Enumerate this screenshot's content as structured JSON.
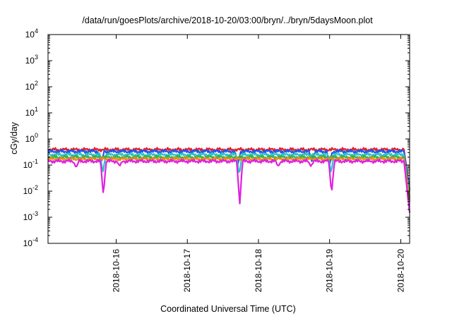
{
  "chart_data": {
    "type": "line",
    "title": "/data/run/goesPlots/archive/2018-10-20/03:00/bryn/../bryn/5daysMoon.plot",
    "xlabel": "Coordinated Universal Time (UTC)",
    "ylabel": "cGy/day",
    "y_scale": "log",
    "ylim": [
      0.0001,
      10000
    ],
    "xlim": [
      "2018-10-15 01:00",
      "2018-10-20 03:00"
    ],
    "y_ticks": [
      {
        "base": "10",
        "exp": "-4",
        "value": 0.0001
      },
      {
        "base": "10",
        "exp": "-3",
        "value": 0.001
      },
      {
        "base": "10",
        "exp": "-2",
        "value": 0.01
      },
      {
        "base": "10",
        "exp": "-1",
        "value": 0.1
      },
      {
        "base": "10",
        "exp": "0",
        "value": 1
      },
      {
        "base": "10",
        "exp": "1",
        "value": 10
      },
      {
        "base": "10",
        "exp": "2",
        "value": 100
      },
      {
        "base": "10",
        "exp": "3",
        "value": 1000
      },
      {
        "base": "10",
        "exp": "4",
        "value": 10000
      }
    ],
    "x_ticks": [
      "2018-10-16",
      "2018-10-17",
      "2018-10-18",
      "2018-10-19",
      "2018-10-20"
    ],
    "grid": false,
    "legend": "none",
    "series": [
      {
        "color": "#e0202a",
        "baseline": 0.39,
        "x": [
          "2018-10-15 01:00",
          "2018-10-15 12:00",
          "2018-10-15 20:00",
          "2018-10-16 06:00",
          "2018-10-16 12:00",
          "2018-10-17 00:00",
          "2018-10-17 18:00",
          "2018-10-18 06:00",
          "2018-10-18 18:00",
          "2018-10-19 01:00",
          "2018-10-19 12:00",
          "2018-10-20 00:00",
          "2018-10-20 01:30",
          "2018-10-20 03:00"
        ],
        "y": [
          0.35,
          0.4,
          0.38,
          0.4,
          0.39,
          0.4,
          0.39,
          0.4,
          0.39,
          0.4,
          0.4,
          0.42,
          0.4,
          0.012
        ]
      },
      {
        "color": "#2255ee",
        "baseline": 0.33,
        "x": [
          "2018-10-15 01:00",
          "2018-10-15 11:00",
          "2018-10-15 19:00",
          "2018-10-16 06:00",
          "2018-10-17 00:00",
          "2018-10-17 17:00",
          "2018-10-18 06:00",
          "2018-10-18 18:00",
          "2018-10-19 00:00",
          "2018-10-19 12:00",
          "2018-10-20 00:00",
          "2018-10-20 03:00"
        ],
        "y": [
          0.3,
          0.34,
          0.12,
          0.33,
          0.33,
          0.1,
          0.33,
          0.14,
          0.1,
          0.33,
          0.34,
          0.01
        ]
      },
      {
        "color": "#2bc3c9",
        "baseline": 0.25,
        "x": [
          "2018-10-15 01:00",
          "2018-10-15 19:30",
          "2018-10-16 12:00",
          "2018-10-17 17:30",
          "2018-10-18 12:00",
          "2018-10-19 00:30",
          "2018-10-19 12:00",
          "2018-10-20 03:00"
        ],
        "y": [
          0.24,
          0.05,
          0.25,
          0.04,
          0.25,
          0.05,
          0.25,
          0.006
        ]
      },
      {
        "color": "#3cb043",
        "baseline": 0.2,
        "x": [
          "2018-10-15 01:00",
          "2018-10-16 12:00",
          "2018-10-18 12:00",
          "2018-10-20 03:00"
        ],
        "y": [
          0.19,
          0.2,
          0.2,
          0.005
        ]
      },
      {
        "color": "#e88a1a",
        "baseline": 0.17,
        "x": [
          "2018-10-15 01:00",
          "2018-10-16 12:00",
          "2018-10-18 12:00",
          "2018-10-20 03:00"
        ],
        "y": [
          0.16,
          0.17,
          0.17,
          0.004
        ]
      },
      {
        "color": "#e020e0",
        "baseline": 0.14,
        "x": [
          "2018-10-15 01:00",
          "2018-10-15 10:30",
          "2018-10-15 19:40",
          "2018-10-16 01:10",
          "2018-10-16 12:00",
          "2018-10-17 17:40",
          "2018-10-18 06:40",
          "2018-10-18 17:40",
          "2018-10-19 00:40",
          "2018-10-19 12:00",
          "2018-10-20 03:00"
        ],
        "y": [
          0.13,
          0.08,
          0.007,
          0.09,
          0.14,
          0.003,
          0.09,
          0.09,
          0.008,
          0.14,
          0.0015
        ]
      }
    ]
  }
}
